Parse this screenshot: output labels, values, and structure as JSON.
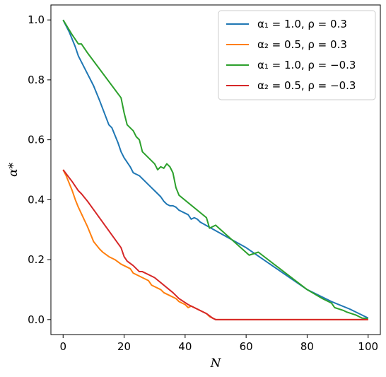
{
  "chart_data": {
    "type": "line",
    "xlabel": "N",
    "ylabel": "α*",
    "xlim": [
      -4,
      104
    ],
    "ylim": [
      -0.05,
      1.05
    ],
    "xticks": [
      0,
      20,
      40,
      60,
      80,
      100
    ],
    "yticks": [
      0.0,
      0.2,
      0.4,
      0.6,
      0.8,
      1.0
    ],
    "grid": false,
    "legend_position": "top-right",
    "series": [
      {
        "name": "α₁ = 1.0, ρ = 0.3",
        "color": "#1f77b4",
        "points": [
          [
            0,
            1.0
          ],
          [
            2,
            0.96
          ],
          [
            4,
            0.91
          ],
          [
            5,
            0.88
          ],
          [
            8,
            0.82
          ],
          [
            10,
            0.78
          ],
          [
            12,
            0.73
          ],
          [
            15,
            0.65
          ],
          [
            16,
            0.64
          ],
          [
            18,
            0.59
          ],
          [
            19,
            0.56
          ],
          [
            20,
            0.54
          ],
          [
            22,
            0.51
          ],
          [
            23,
            0.49
          ],
          [
            25,
            0.48
          ],
          [
            27,
            0.46
          ],
          [
            28,
            0.45
          ],
          [
            29,
            0.44
          ],
          [
            30,
            0.43
          ],
          [
            31,
            0.42
          ],
          [
            32,
            0.41
          ],
          [
            33,
            0.395
          ],
          [
            34,
            0.385
          ],
          [
            35,
            0.38
          ],
          [
            36,
            0.38
          ],
          [
            37,
            0.375
          ],
          [
            38,
            0.365
          ],
          [
            40,
            0.355
          ],
          [
            41,
            0.35
          ],
          [
            42,
            0.335
          ],
          [
            43,
            0.34
          ],
          [
            44,
            0.335
          ],
          [
            45,
            0.325
          ],
          [
            60,
            0.24
          ],
          [
            80,
            0.1
          ],
          [
            88,
            0.06
          ],
          [
            94,
            0.035
          ],
          [
            100,
            0.005
          ]
        ]
      },
      {
        "name": "α₂ = 0.5, ρ = 0.3",
        "color": "#ff7f0e",
        "points": [
          [
            0,
            0.5
          ],
          [
            1,
            0.48
          ],
          [
            3,
            0.43
          ],
          [
            4,
            0.4
          ],
          [
            5,
            0.375
          ],
          [
            8,
            0.31
          ],
          [
            10,
            0.26
          ],
          [
            12,
            0.235
          ],
          [
            13,
            0.225
          ],
          [
            15,
            0.21
          ],
          [
            17,
            0.2
          ],
          [
            19,
            0.185
          ],
          [
            22,
            0.17
          ],
          [
            23,
            0.155
          ],
          [
            24,
            0.15
          ],
          [
            26,
            0.14
          ],
          [
            28,
            0.13
          ],
          [
            29,
            0.115
          ],
          [
            30,
            0.11
          ],
          [
            32,
            0.1
          ],
          [
            33,
            0.09
          ],
          [
            34,
            0.085
          ],
          [
            35,
            0.08
          ],
          [
            37,
            0.07
          ],
          [
            38,
            0.06
          ],
          [
            40,
            0.05
          ],
          [
            41,
            0.04
          ],
          [
            42,
            0.045
          ],
          [
            43,
            0.04
          ],
          [
            45,
            0.03
          ],
          [
            47,
            0.02
          ],
          [
            48,
            0.01
          ],
          [
            50,
            0.0
          ],
          [
            100,
            0.0
          ]
        ]
      },
      {
        "name": "α₁ = 1.0, ρ = −0.3",
        "color": "#2ca02c",
        "points": [
          [
            0,
            1.0
          ],
          [
            3,
            0.95
          ],
          [
            5,
            0.92
          ],
          [
            6,
            0.92
          ],
          [
            8,
            0.89
          ],
          [
            19,
            0.74
          ],
          [
            20,
            0.69
          ],
          [
            21,
            0.65
          ],
          [
            23,
            0.63
          ],
          [
            24,
            0.61
          ],
          [
            25,
            0.6
          ],
          [
            26,
            0.56
          ],
          [
            27,
            0.55
          ],
          [
            28,
            0.54
          ],
          [
            30,
            0.52
          ],
          [
            31,
            0.5
          ],
          [
            32,
            0.51
          ],
          [
            33,
            0.505
          ],
          [
            34,
            0.52
          ],
          [
            35,
            0.51
          ],
          [
            36,
            0.49
          ],
          [
            37,
            0.44
          ],
          [
            38,
            0.415
          ],
          [
            47,
            0.34
          ],
          [
            48,
            0.305
          ],
          [
            50,
            0.315
          ],
          [
            61,
            0.215
          ],
          [
            64,
            0.225
          ],
          [
            80,
            0.1
          ],
          [
            85,
            0.07
          ],
          [
            88,
            0.055
          ],
          [
            89,
            0.04
          ],
          [
            92,
            0.03
          ],
          [
            93,
            0.025
          ],
          [
            96,
            0.015
          ],
          [
            98,
            0.005
          ],
          [
            100,
            0.003
          ]
        ]
      },
      {
        "name": "α₂ = 0.5, ρ = −0.3",
        "color": "#d62728",
        "points": [
          [
            0,
            0.5
          ],
          [
            3,
            0.46
          ],
          [
            5,
            0.43
          ],
          [
            6,
            0.42
          ],
          [
            8,
            0.395
          ],
          [
            19,
            0.24
          ],
          [
            20,
            0.21
          ],
          [
            21,
            0.195
          ],
          [
            23,
            0.18
          ],
          [
            24,
            0.17
          ],
          [
            25,
            0.16
          ],
          [
            26,
            0.16
          ],
          [
            28,
            0.15
          ],
          [
            30,
            0.14
          ],
          [
            36,
            0.09
          ],
          [
            38,
            0.07
          ],
          [
            41,
            0.05
          ],
          [
            43,
            0.04
          ],
          [
            47,
            0.02
          ],
          [
            49,
            0.005
          ],
          [
            50,
            0.0
          ],
          [
            100,
            0.0
          ]
        ]
      }
    ]
  }
}
